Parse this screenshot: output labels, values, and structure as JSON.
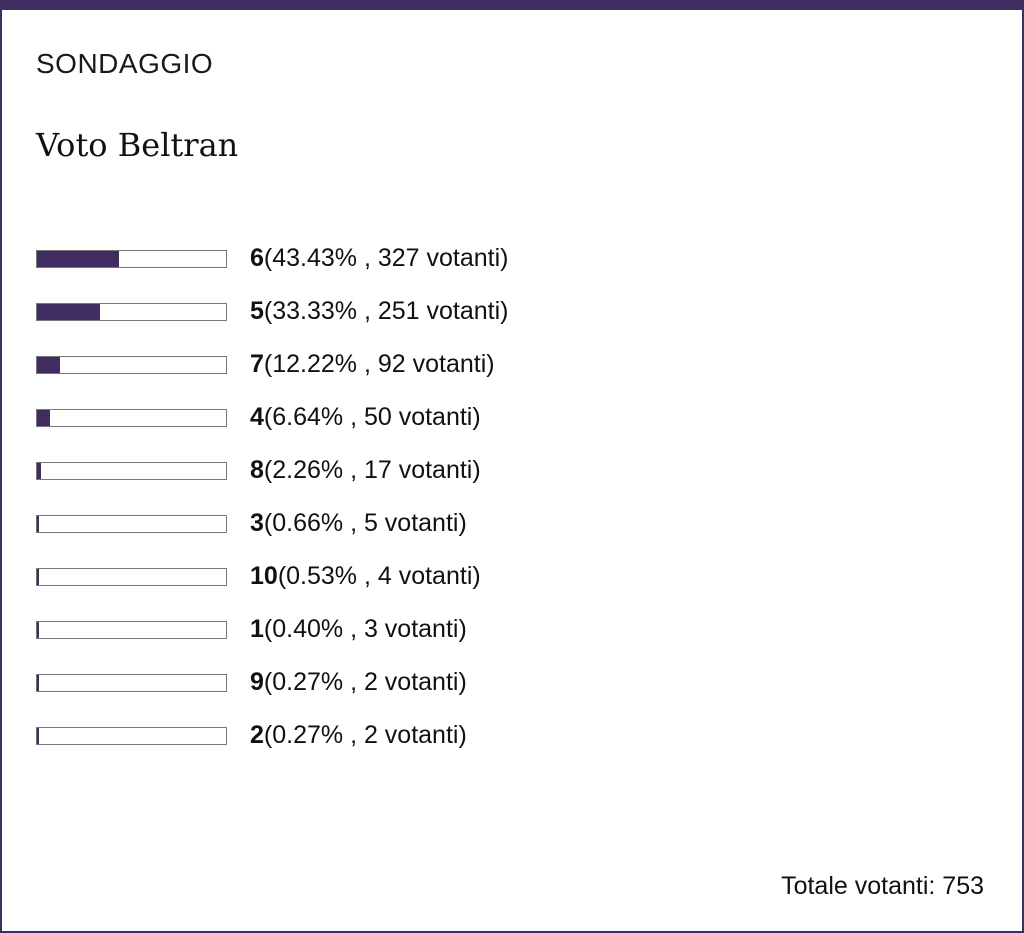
{
  "poll": {
    "label": "SONDAGGIO",
    "question": "Voto Beltran",
    "accent_color": "#3f2d62",
    "options": [
      {
        "name": "6",
        "percent": 43.43,
        "details": "(43.43% , 327 votanti)"
      },
      {
        "name": "5",
        "percent": 33.33,
        "details": "(33.33% , 251 votanti)"
      },
      {
        "name": "7",
        "percent": 12.22,
        "details": "(12.22% , 92 votanti)"
      },
      {
        "name": "4",
        "percent": 6.64,
        "details": "(6.64% , 50 votanti)"
      },
      {
        "name": "8",
        "percent": 2.26,
        "details": "(2.26% , 17 votanti)"
      },
      {
        "name": "3",
        "percent": 0.66,
        "details": "(0.66% , 5 votanti)"
      },
      {
        "name": "10",
        "percent": 0.53,
        "details": "(0.53% , 4 votanti)"
      },
      {
        "name": "1",
        "percent": 0.4,
        "details": "(0.40% , 3 votanti)"
      },
      {
        "name": "9",
        "percent": 0.27,
        "details": "(0.27% , 2 votanti)"
      },
      {
        "name": "2",
        "percent": 0.27,
        "details": "(0.27% , 2 votanti)"
      }
    ],
    "total": "Totale votanti: 753"
  }
}
